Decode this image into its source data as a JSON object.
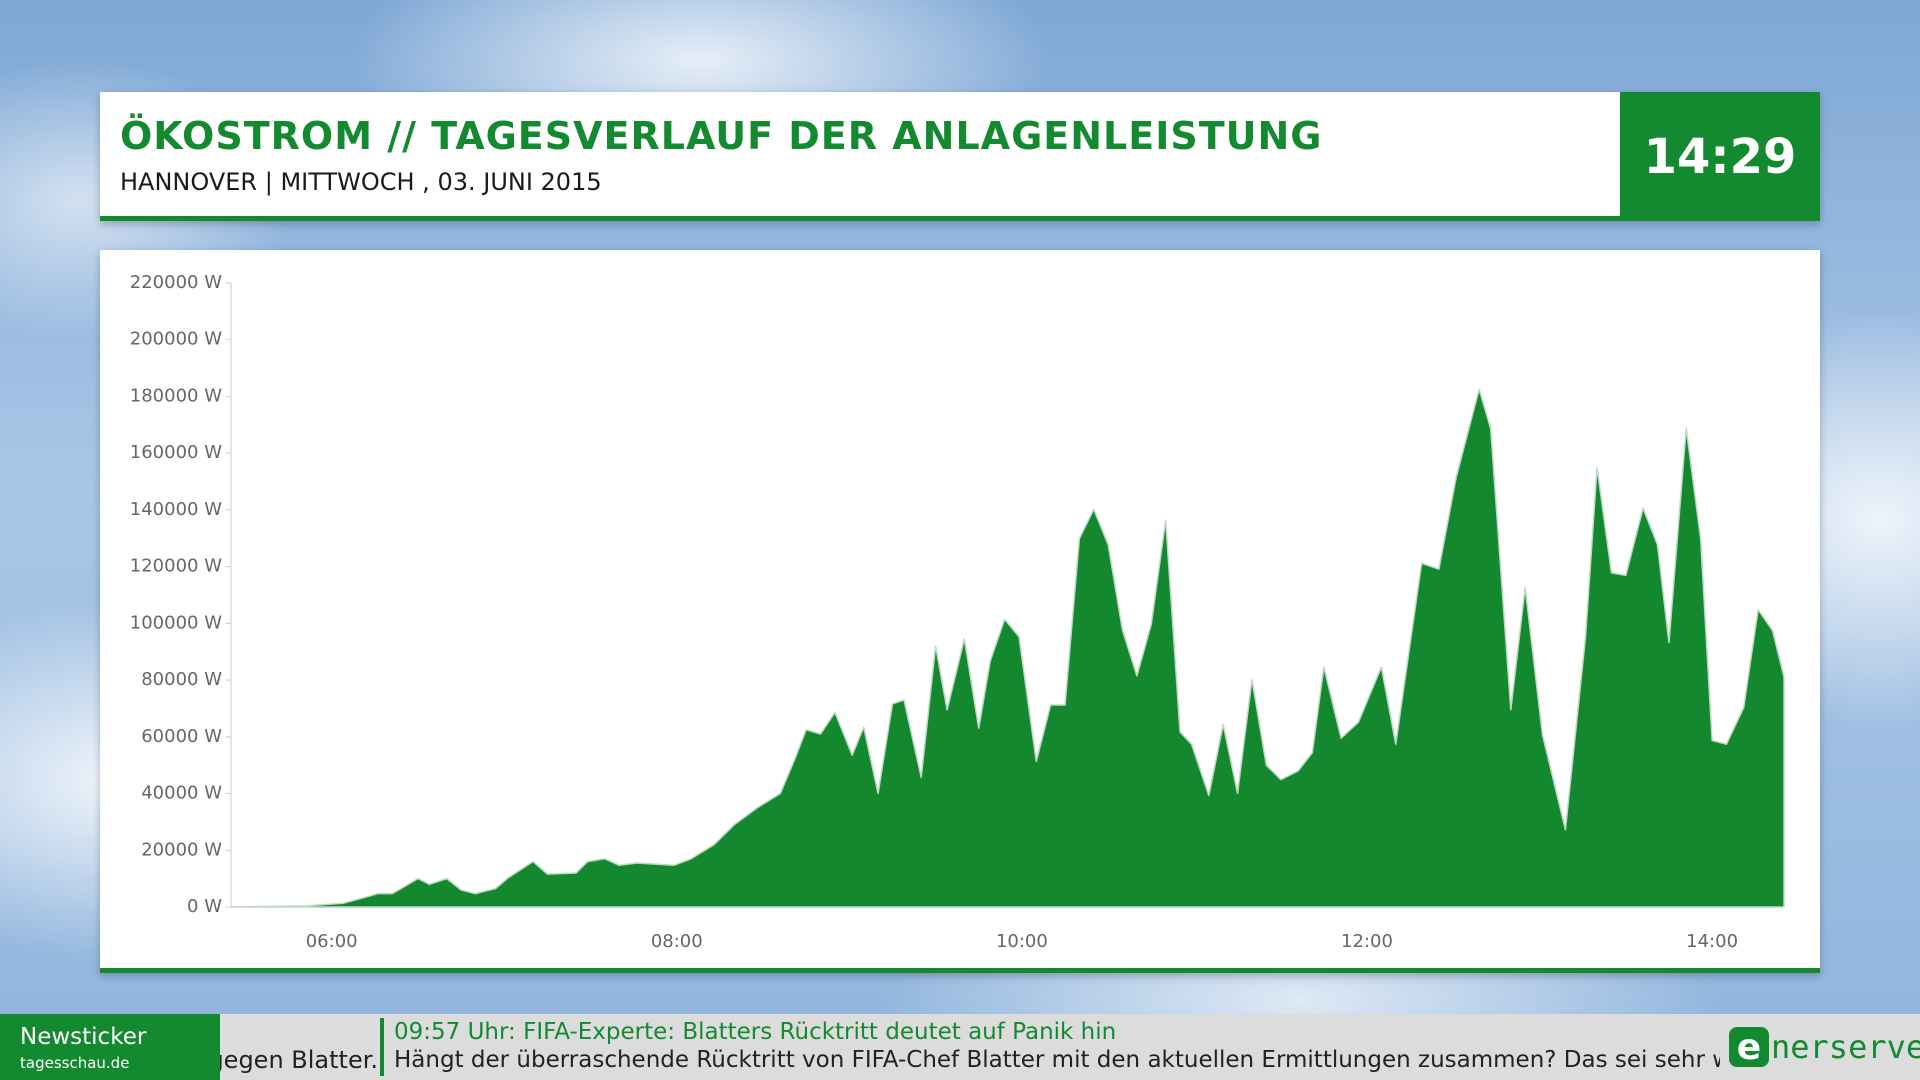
{
  "header": {
    "title": "ÖKOSTROM // TAGESVERLAUF DER ANLAGENLEISTUNG",
    "subtitle": "HANNOVER | MITTWOCH , 03. JUNI 2015",
    "clock": "14:29"
  },
  "chart_data": {
    "type": "area",
    "color": "#14882f",
    "x": [
      "05:25",
      "05:51",
      "06:04",
      "06:12",
      "06:16",
      "06:21",
      "06:25",
      "06:30",
      "06:34",
      "06:40",
      "06:45",
      "06:50",
      "06:57",
      "07:01",
      "07:10",
      "07:15",
      "07:25",
      "07:29",
      "07:35",
      "07:40",
      "07:46",
      "07:59",
      "08:05",
      "08:13",
      "08:20",
      "08:28",
      "08:36",
      "08:41",
      "08:45",
      "08:50",
      "08:55",
      "09:01",
      "09:05",
      "09:10",
      "09:15",
      "09:19",
      "09:25",
      "09:30",
      "09:34",
      "09:40",
      "09:45",
      "09:49",
      "09:54",
      "09:59",
      "10:05",
      "10:10",
      "10:15",
      "10:20",
      "10:25",
      "10:30",
      "10:35",
      "10:40",
      "10:45",
      "10:50",
      "10:55",
      "10:59",
      "11:05",
      "11:10",
      "11:15",
      "11:20",
      "11:25",
      "11:30",
      "11:36",
      "11:41",
      "11:45",
      "11:51",
      "11:57",
      "12:05",
      "12:10",
      "12:19",
      "12:25",
      "12:31",
      "12:39",
      "12:43",
      "12:50",
      "12:55",
      "13:01",
      "13:09",
      "13:16",
      "13:20",
      "13:25",
      "13:30",
      "13:36",
      "13:41",
      "13:45",
      "13:51",
      "13:56",
      "14:00",
      "14:05",
      "14:11",
      "14:16",
      "14:21",
      "14:25"
    ],
    "values": [
      0,
      400,
      1300,
      3500,
      4700,
      4700,
      7000,
      10000,
      8000,
      10000,
      6000,
      4700,
      6500,
      10000,
      16000,
      11600,
      12000,
      16000,
      17000,
      14700,
      15500,
      14700,
      17000,
      22000,
      29000,
      35000,
      40000,
      52000,
      62500,
      61000,
      68600,
      53500,
      63400,
      40000,
      71600,
      73000,
      45700,
      92000,
      69500,
      94500,
      63000,
      86700,
      101400,
      95300,
      51300,
      71200,
      71200,
      129900,
      140200,
      127700,
      97500,
      81500,
      99700,
      136300,
      61700,
      57400,
      39300,
      64300,
      40100,
      80200,
      50000,
      44900,
      47900,
      54400,
      84600,
      59500,
      65100,
      84600,
      57400,
      121200,
      119100,
      151400,
      182500,
      168700,
      69500,
      112600,
      60800,
      27200,
      95300,
      154900,
      117800,
      116900,
      140600,
      127700,
      93200,
      168700,
      129900,
      58700,
      57400,
      70300,
      104800,
      97500,
      81100
    ],
    "xlim": [
      "05:25",
      "14:25"
    ],
    "xticks": [
      "06:00",
      "08:00",
      "10:00",
      "12:00",
      "14:00"
    ],
    "ylim": [
      0,
      220000
    ],
    "yticks": [
      {
        "value": 0,
        "label": "0 W"
      },
      {
        "value": 20000,
        "label": "20000 W"
      },
      {
        "value": 40000,
        "label": "40000 W"
      },
      {
        "value": 60000,
        "label": "60000 W"
      },
      {
        "value": 80000,
        "label": "80000 W"
      },
      {
        "value": 100000,
        "label": "100000 W"
      },
      {
        "value": 120000,
        "label": "120000 W"
      },
      {
        "value": 140000,
        "label": "140000 W"
      },
      {
        "value": 160000,
        "label": "160000 W"
      },
      {
        "value": 180000,
        "label": "180000 W"
      },
      {
        "value": 200000,
        "label": "200000 W"
      },
      {
        "value": 220000,
        "label": "220000 W"
      }
    ]
  },
  "ticker": {
    "label": "Newsticker",
    "source": "tagesschau.de",
    "previous": "gegen Blatter.",
    "headline": "09:57 Uhr: FIFA-Experte: Blatters Rücktritt deutet auf Panik hin",
    "text": "Hängt der überraschende Rücktritt von FIFA-Chef Blatter mit den aktuellen Ermittlungen zusammen? Das sei sehr wahrscheinlich"
  },
  "logo": {
    "mark": "e",
    "text": "nerserve"
  }
}
